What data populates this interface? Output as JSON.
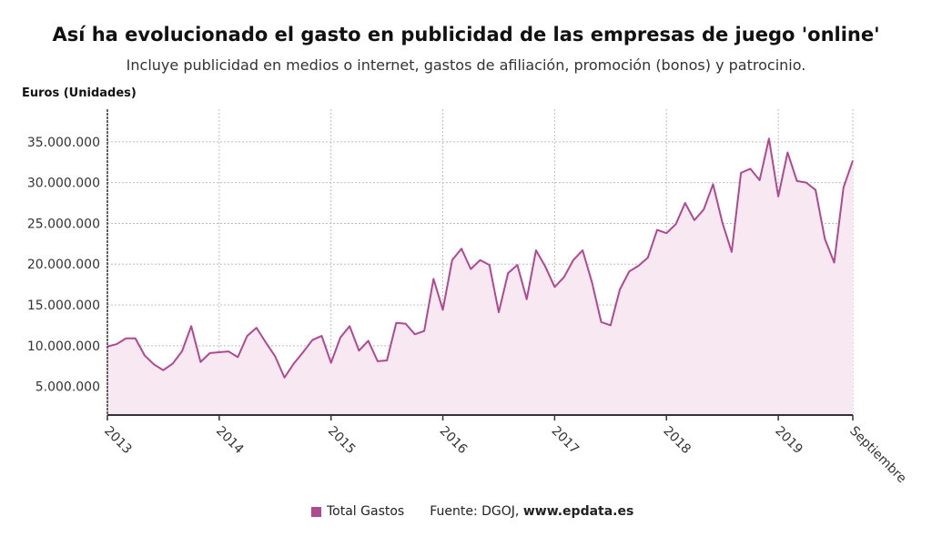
{
  "title": "Así ha evolucionado el gasto en publicidad de las empresas de juego 'online'",
  "subtitle": "Incluye publicidad en medios o internet, gastos de afiliación, promoción (bonos) y patrocinio.",
  "source_label": "Fuente: DGOJ,",
  "source_site": "www.epdata.es",
  "colors": {
    "line": "#b0498f",
    "fill": "#f8e8f2",
    "grid": "#bdbdbd",
    "axis": "#333333"
  },
  "chart_data": {
    "type": "area",
    "title": "Así ha evolucionado el gasto en publicidad de las empresas de juego 'online'",
    "subtitle": "Incluye publicidad en medios o internet, gastos de afiliación, promoción (bonos) y patrocinio.",
    "ylabel": "Euros (Unidades)",
    "xlabel": "",
    "ylim": [
      1500000,
      39000000
    ],
    "x_start": "2013-01",
    "x_end": "2019-09",
    "yticks": [
      "5.000.000",
      "10.000.000",
      "15.000.000",
      "20.000.000",
      "25.000.000",
      "30.000.000",
      "35.000.000"
    ],
    "ytick_values": [
      5000000,
      10000000,
      15000000,
      20000000,
      25000000,
      30000000,
      35000000
    ],
    "xticks": [
      "2013",
      "2014",
      "2015",
      "2016",
      "2017",
      "2018",
      "2019",
      "Septiembre"
    ],
    "xtick_months": [
      "2013-01",
      "2014-01",
      "2015-01",
      "2016-01",
      "2017-01",
      "2018-01",
      "2019-01",
      "2019-09"
    ],
    "grid": true,
    "legend": "bottom-center",
    "series": [
      {
        "name": "Total Gastos",
        "values": [
          9900000,
          10200000,
          10900000,
          10900000,
          8800000,
          7700000,
          7000000,
          7800000,
          9300000,
          12400000,
          8000000,
          9100000,
          9200000,
          9300000,
          8600000,
          11200000,
          12200000,
          10400000,
          8700000,
          6100000,
          7800000,
          9200000,
          10700000,
          11200000,
          7900000,
          11000000,
          12400000,
          9400000,
          10600000,
          8100000,
          8200000,
          12800000,
          12700000,
          11400000,
          11800000,
          18200000,
          14400000,
          20500000,
          21900000,
          19400000,
          20500000,
          19900000,
          14100000,
          18900000,
          19900000,
          15700000,
          21700000,
          19700000,
          17200000,
          18400000,
          20500000,
          21700000,
          17800000,
          12900000,
          12500000,
          16900000,
          19100000,
          19800000,
          20800000,
          24200000,
          23800000,
          24900000,
          27500000,
          25400000,
          26700000,
          29800000,
          25100000,
          21500000,
          31200000,
          31700000,
          30300000,
          35400000,
          28300000,
          33700000,
          30200000,
          30000000,
          29100000,
          23100000,
          20200000,
          29400000,
          32700000
        ]
      }
    ]
  }
}
